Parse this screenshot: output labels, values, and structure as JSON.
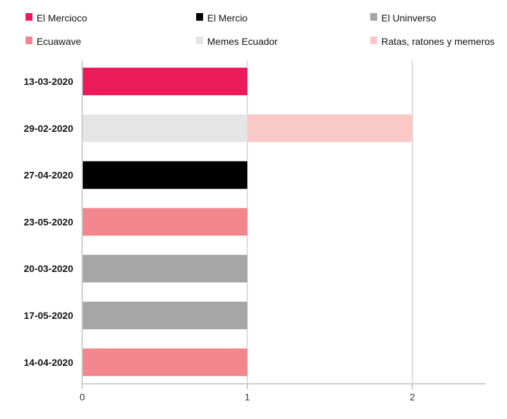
{
  "chart_data": {
    "type": "bar",
    "orientation": "horizontal",
    "stacked": true,
    "categories": [
      "13-03-2020",
      "29-02-2020",
      "27-04-2020",
      "23-05-2020",
      "20-03-2020",
      "17-05-2020",
      "14-04-2020"
    ],
    "series": [
      {
        "name": "El Mercioco",
        "color": "#ec1a5b",
        "values": [
          1,
          0,
          0,
          0,
          0,
          0,
          0
        ]
      },
      {
        "name": "El Mercio",
        "color": "#000000",
        "values": [
          0,
          0,
          1,
          0,
          0,
          0,
          0
        ]
      },
      {
        "name": "El Uninverso",
        "color": "#a6a6a6",
        "values": [
          0,
          0,
          0,
          0,
          1,
          1,
          0
        ]
      },
      {
        "name": "Ecuawave",
        "color": "#f2868c",
        "values": [
          0,
          0,
          0,
          1,
          0,
          0,
          1
        ]
      },
      {
        "name": "Memes Ecuador",
        "color": "#e5e5e5",
        "values": [
          0,
          1,
          0,
          0,
          0,
          0,
          0
        ]
      },
      {
        "name": "Ratas, ratones y memeros",
        "color": "#fbc8c8",
        "values": [
          0,
          1,
          0,
          0,
          0,
          0,
          0
        ]
      }
    ],
    "xticks": [
      "0",
      "1",
      "2"
    ],
    "xlim": [
      0,
      2.45
    ],
    "title": "",
    "xlabel": "",
    "ylabel": "",
    "grid": "vertical",
    "legend_position": "top"
  }
}
